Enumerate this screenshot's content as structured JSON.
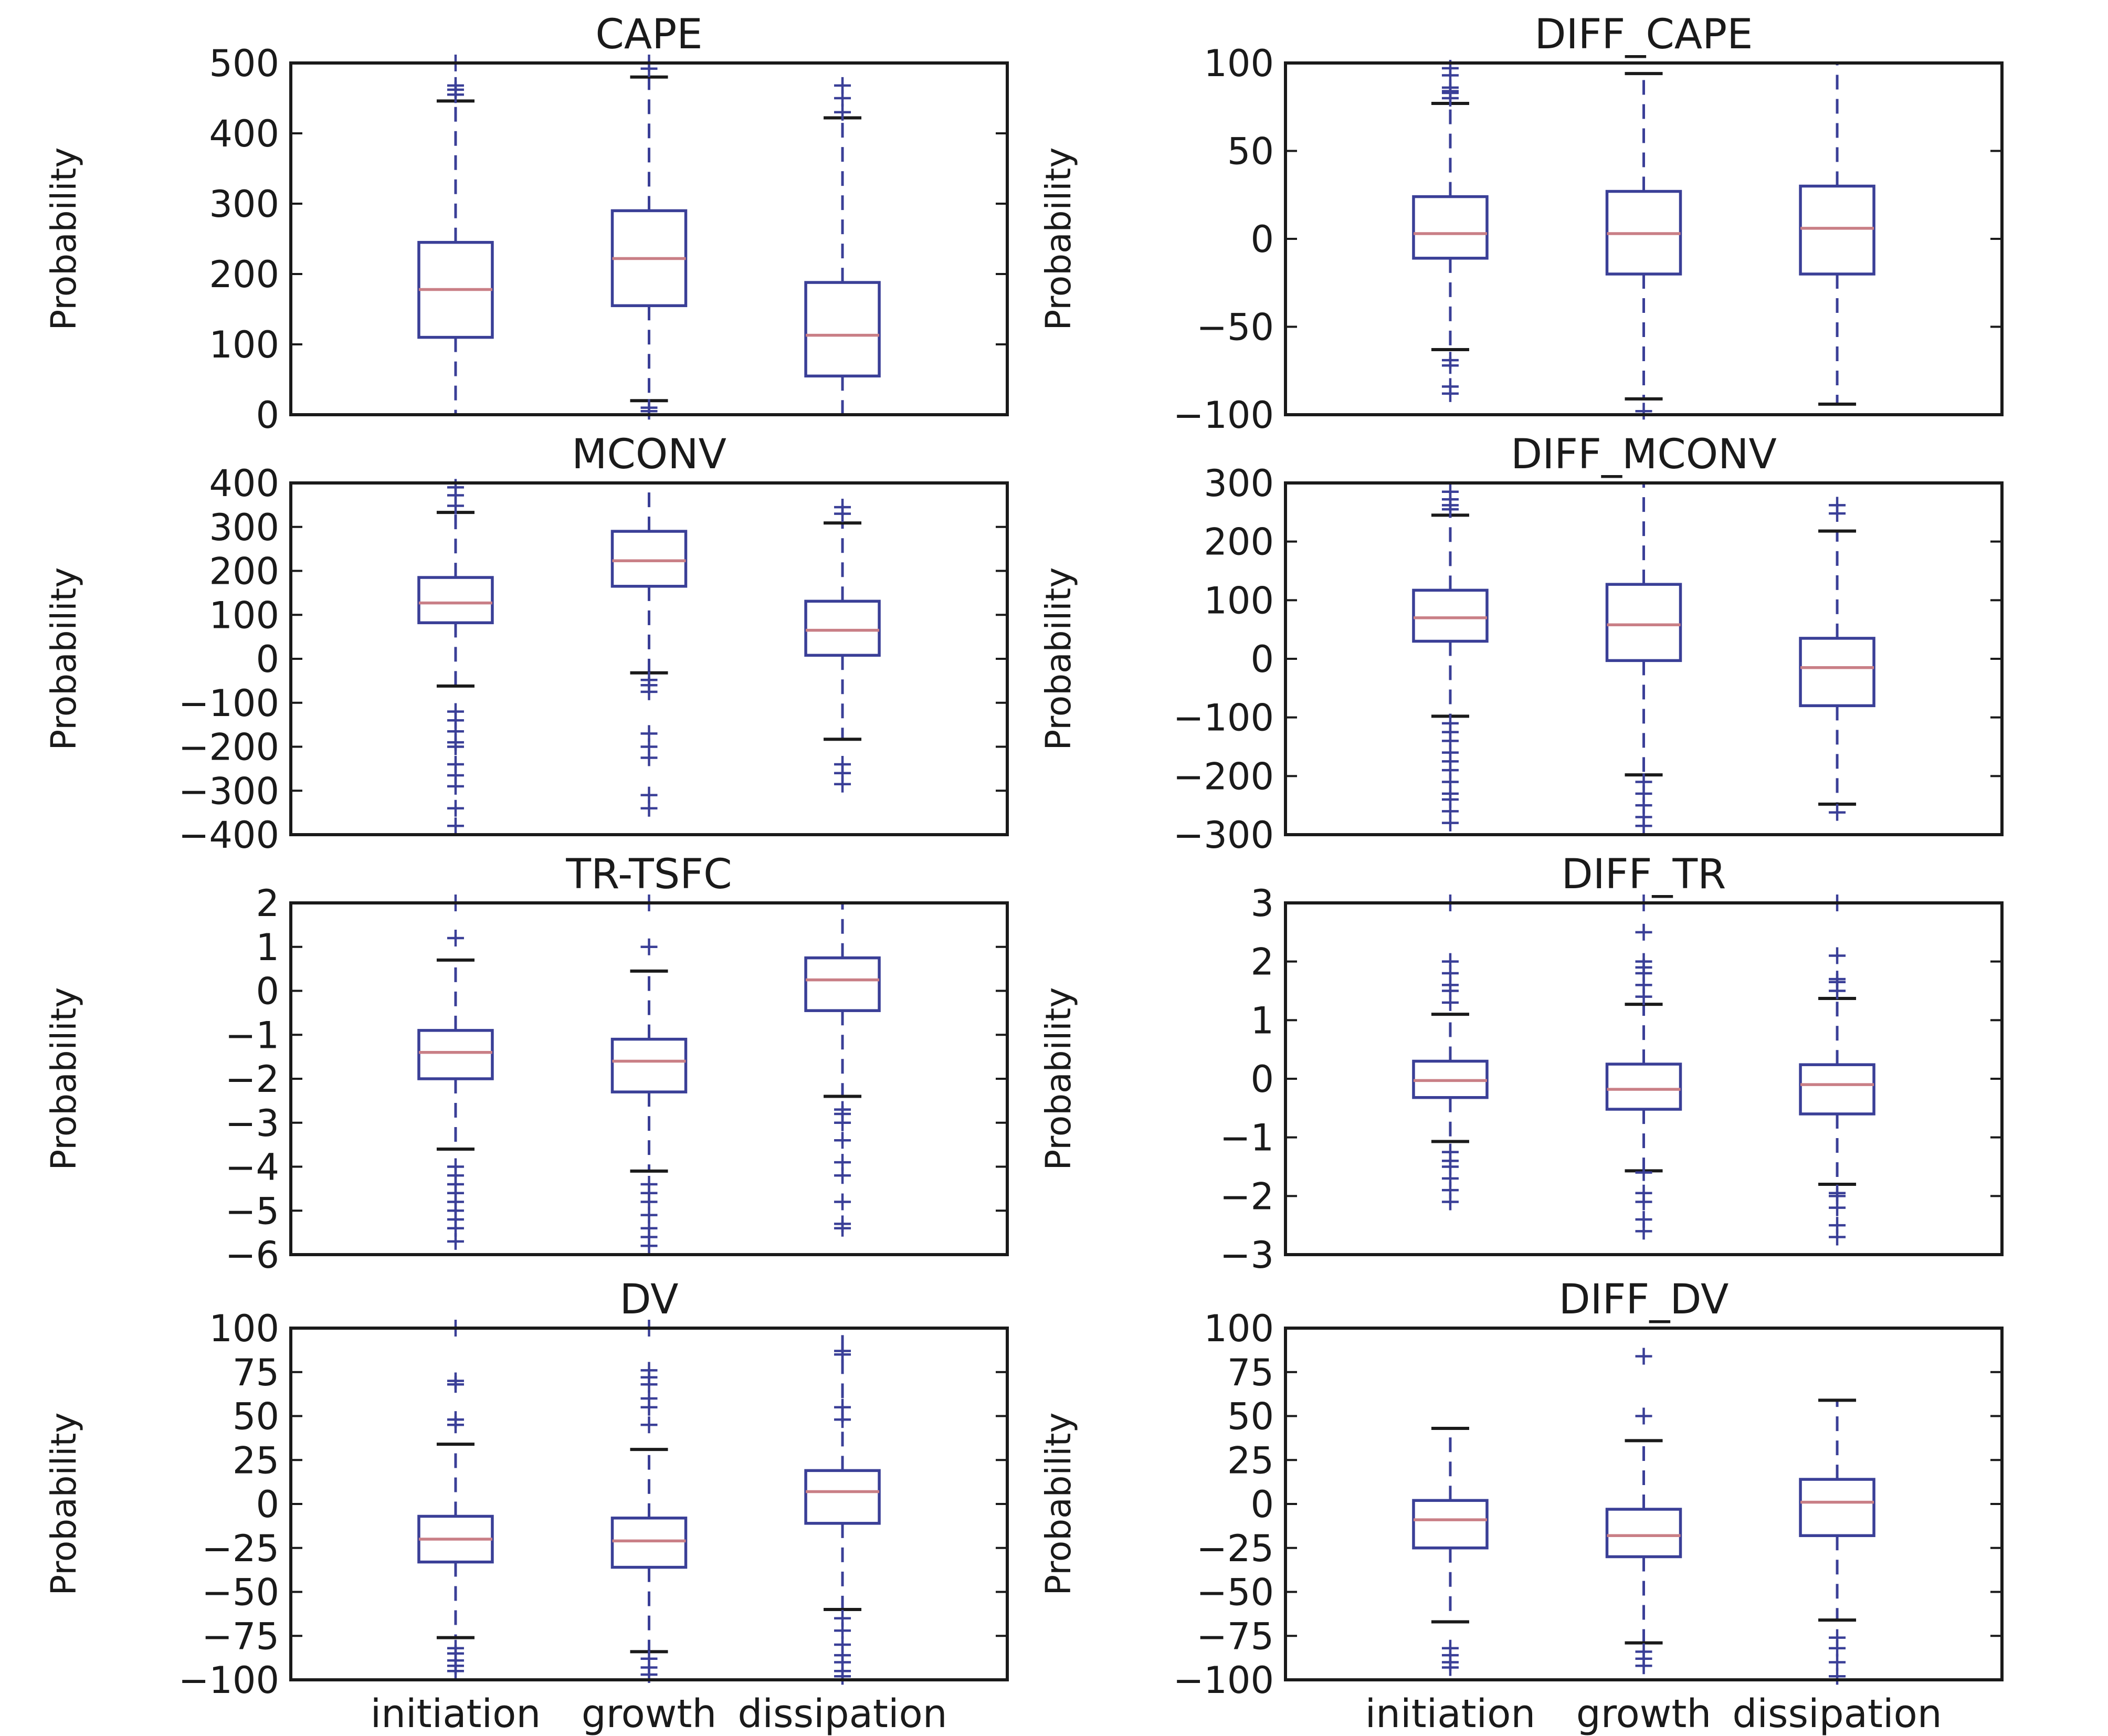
{
  "chart_data": [
    {
      "type": "box",
      "title": "CAPE",
      "ylabel": "Probability",
      "ylim": [
        0,
        500
      ],
      "yticks": [
        0,
        100,
        200,
        300,
        400,
        500
      ],
      "ytick_labels": [
        "0",
        "100",
        "200",
        "300",
        "400",
        "500"
      ],
      "categories": [
        "initiation",
        "growth",
        "dissipation"
      ],
      "show_categories": false,
      "boxes": [
        {
          "whislo": 0,
          "q1": 110,
          "med": 178,
          "q3": 245,
          "whishi": 446,
          "fliers": [
            455,
            462,
            468,
            500
          ]
        },
        {
          "whislo": 20,
          "q1": 155,
          "med": 222,
          "q3": 290,
          "whishi": 480,
          "fliers": [
            5,
            10,
            492,
            500
          ]
        },
        {
          "whislo": 0,
          "q1": 55,
          "med": 113,
          "q3": 188,
          "whishi": 422,
          "fliers": [
            430,
            450,
            468
          ]
        }
      ]
    },
    {
      "type": "box",
      "title": "DIFF_CAPE",
      "ylabel": "Probability",
      "ylim": [
        -100,
        100
      ],
      "yticks": [
        -100,
        -50,
        0,
        50,
        100
      ],
      "ytick_labels": [
        "−100",
        "−50",
        "0",
        "50",
        "100"
      ],
      "categories": [
        "initiation",
        "growth",
        "dissipation"
      ],
      "show_categories": false,
      "boxes": [
        {
          "whislo": -63,
          "q1": -11,
          "med": 3,
          "q3": 24,
          "whishi": 77,
          "fliers": [
            -88,
            -84,
            -72,
            -69,
            80,
            83,
            84,
            86,
            93,
            97
          ]
        },
        {
          "whislo": -91,
          "q1": -20,
          "med": 3,
          "q3": 27,
          "whishi": 94,
          "fliers": [
            -98
          ]
        },
        {
          "whislo": -94,
          "q1": -20,
          "med": 6,
          "q3": 30,
          "whishi": 100,
          "fliers": []
        }
      ]
    },
    {
      "type": "box",
      "title": "MCONV",
      "ylabel": "Probability",
      "ylim": [
        -400,
        400
      ],
      "yticks": [
        -400,
        -300,
        -200,
        -100,
        0,
        100,
        200,
        300,
        400
      ],
      "ytick_labels": [
        "−400",
        "−300",
        "−200",
        "−100",
        "0",
        "100",
        "200",
        "300",
        "400"
      ],
      "categories": [
        "initiation",
        "growth",
        "dissipation"
      ],
      "show_categories": false,
      "boxes": [
        {
          "whislo": -62,
          "q1": 82,
          "med": 127,
          "q3": 185,
          "whishi": 333,
          "fliers": [
            -380,
            -340,
            -290,
            -265,
            -240,
            -200,
            -190,
            -165,
            -140,
            -120,
            348,
            372,
            390
          ]
        },
        {
          "whislo": -32,
          "q1": 165,
          "med": 223,
          "q3": 290,
          "whishi": 400,
          "fliers": [
            -340,
            -310,
            -225,
            -200,
            -170,
            -75,
            -60,
            -48
          ]
        },
        {
          "whislo": -183,
          "q1": 8,
          "med": 65,
          "q3": 131,
          "whishi": 309,
          "fliers": [
            -285,
            -260,
            -240,
            330,
            345
          ]
        }
      ]
    },
    {
      "type": "box",
      "title": "DIFF_MCONV",
      "ylabel": "Probability",
      "ylim": [
        -300,
        300
      ],
      "yticks": [
        -300,
        -200,
        -100,
        0,
        100,
        200,
        300
      ],
      "ytick_labels": [
        "−300",
        "−200",
        "−100",
        "0",
        "100",
        "200",
        "300"
      ],
      "categories": [
        "initiation",
        "growth",
        "dissipation"
      ],
      "show_categories": false,
      "boxes": [
        {
          "whislo": -98,
          "q1": 30,
          "med": 70,
          "q3": 117,
          "whishi": 245,
          "fliers": [
            -280,
            -260,
            -240,
            -230,
            -210,
            -190,
            -175,
            -160,
            -140,
            -125,
            -110,
            255,
            262,
            272,
            285
          ]
        },
        {
          "whislo": -198,
          "q1": -3,
          "med": 58,
          "q3": 127,
          "whishi": 300,
          "fliers": [
            -285,
            -270,
            -250,
            -230,
            -210
          ]
        },
        {
          "whislo": -248,
          "q1": -80,
          "med": -15,
          "q3": 35,
          "whishi": 218,
          "fliers": [
            -262,
            248,
            262
          ]
        }
      ]
    },
    {
      "type": "box",
      "title": "TR-TSFC",
      "ylabel": "Probability",
      "ylim": [
        -6,
        2
      ],
      "yticks": [
        -6,
        -5,
        -4,
        -3,
        -2,
        -1,
        0,
        1,
        2
      ],
      "ytick_labels": [
        "−6",
        "−5",
        "−4",
        "−3",
        "−2",
        "−1",
        "0",
        "1",
        "2"
      ],
      "categories": [
        "initiation",
        "growth",
        "dissipation"
      ],
      "show_categories": false,
      "boxes": [
        {
          "whislo": -3.6,
          "q1": -2.0,
          "med": -1.4,
          "q3": -0.9,
          "whishi": 0.7,
          "fliers": [
            -5.7,
            -5.4,
            -5.2,
            -5.0,
            -4.8,
            -4.6,
            -4.4,
            -4.2,
            -4.0,
            1.2,
            2.0
          ]
        },
        {
          "whislo": -4.1,
          "q1": -2.3,
          "med": -1.6,
          "q3": -1.1,
          "whishi": 0.45,
          "fliers": [
            -5.8,
            -5.6,
            -5.4,
            -5.1,
            -4.8,
            -4.6,
            -4.4,
            1.0,
            2.0
          ]
        },
        {
          "whislo": -2.4,
          "q1": -0.45,
          "med": 0.25,
          "q3": 0.75,
          "whishi": 2.0,
          "fliers": [
            -5.4,
            -5.3,
            -4.8,
            -4.2,
            -3.9,
            -3.4,
            -3.0,
            -2.8,
            -2.7
          ]
        }
      ]
    },
    {
      "type": "box",
      "title": "DIFF_TR",
      "ylabel": "Probability",
      "ylim": [
        -3,
        3
      ],
      "yticks": [
        -3,
        -2,
        -1,
        0,
        1,
        2,
        3
      ],
      "ytick_labels": [
        "−3",
        "−2",
        "−1",
        "0",
        "1",
        "2",
        "3"
      ],
      "categories": [
        "initiation",
        "growth",
        "dissipation"
      ],
      "show_categories": false,
      "boxes": [
        {
          "whislo": -1.07,
          "q1": -0.32,
          "med": -0.03,
          "q3": 0.3,
          "whishi": 1.1,
          "fliers": [
            -2.1,
            -1.9,
            -1.7,
            -1.5,
            -1.4,
            -1.25,
            1.3,
            1.5,
            1.6,
            1.8,
            2.0,
            3.0
          ]
        },
        {
          "whislo": -1.57,
          "q1": -0.52,
          "med": -0.18,
          "q3": 0.25,
          "whishi": 1.27,
          "fliers": [
            -2.6,
            -2.4,
            -2.1,
            -1.95,
            -1.6,
            1.4,
            1.6,
            1.8,
            1.9,
            2.0,
            2.5,
            3.0
          ]
        },
        {
          "whislo": -1.8,
          "q1": -0.6,
          "med": -0.1,
          "q3": 0.24,
          "whishi": 1.37,
          "fliers": [
            -2.7,
            -2.5,
            -2.2,
            -2.0,
            -1.95,
            1.5,
            1.65,
            1.7,
            2.1,
            3.0
          ]
        }
      ]
    },
    {
      "type": "box",
      "title": "DV",
      "ylabel": "Probability",
      "ylim": [
        -100,
        100
      ],
      "yticks": [
        -100,
        -75,
        -50,
        -25,
        0,
        25,
        50,
        75,
        100
      ],
      "ytick_labels": [
        "−100",
        "−75",
        "−50",
        "−25",
        "0",
        "25",
        "50",
        "75",
        "100"
      ],
      "categories": [
        "initiation",
        "growth",
        "dissipation"
      ],
      "show_categories": true,
      "boxes": [
        {
          "whislo": -76,
          "q1": -33,
          "med": -20,
          "q3": -7,
          "whishi": 34,
          "fliers": [
            -95,
            -92,
            -89,
            -85,
            -82,
            45,
            48,
            68,
            70,
            100
          ]
        },
        {
          "whislo": -84,
          "q1": -36,
          "med": -21,
          "q3": -8,
          "whishi": 31,
          "fliers": [
            -97,
            -93,
            -88,
            45,
            55,
            60,
            68,
            72,
            76,
            100
          ]
        },
        {
          "whislo": -60,
          "q1": -11,
          "med": 7,
          "q3": 19,
          "whishi": 100,
          "fliers": [
            -98,
            -95,
            -90,
            -86,
            -80,
            -72,
            -65,
            48,
            55,
            85,
            87
          ]
        }
      ]
    },
    {
      "type": "box",
      "title": "DIFF_DV",
      "ylabel": "Probability",
      "ylim": [
        -100,
        100
      ],
      "yticks": [
        -100,
        -75,
        -50,
        -25,
        0,
        25,
        50,
        75,
        100
      ],
      "ytick_labels": [
        "−100",
        "−75",
        "−50",
        "−25",
        "0",
        "25",
        "50",
        "75",
        "100"
      ],
      "categories": [
        "initiation",
        "growth",
        "dissipation"
      ],
      "show_categories": true,
      "boxes": [
        {
          "whislo": -67,
          "q1": -25,
          "med": -9,
          "q3": 2,
          "whishi": 43,
          "fliers": [
            -93,
            -90,
            -86,
            -82
          ]
        },
        {
          "whislo": -79,
          "q1": -30,
          "med": -18,
          "q3": -3,
          "whishi": 36,
          "fliers": [
            -92,
            -88,
            -84,
            50,
            84
          ]
        },
        {
          "whislo": -66,
          "q1": -18,
          "med": 1,
          "q3": 14,
          "whishi": 59,
          "fliers": [
            -98,
            -90,
            -82,
            -76
          ]
        }
      ]
    }
  ]
}
